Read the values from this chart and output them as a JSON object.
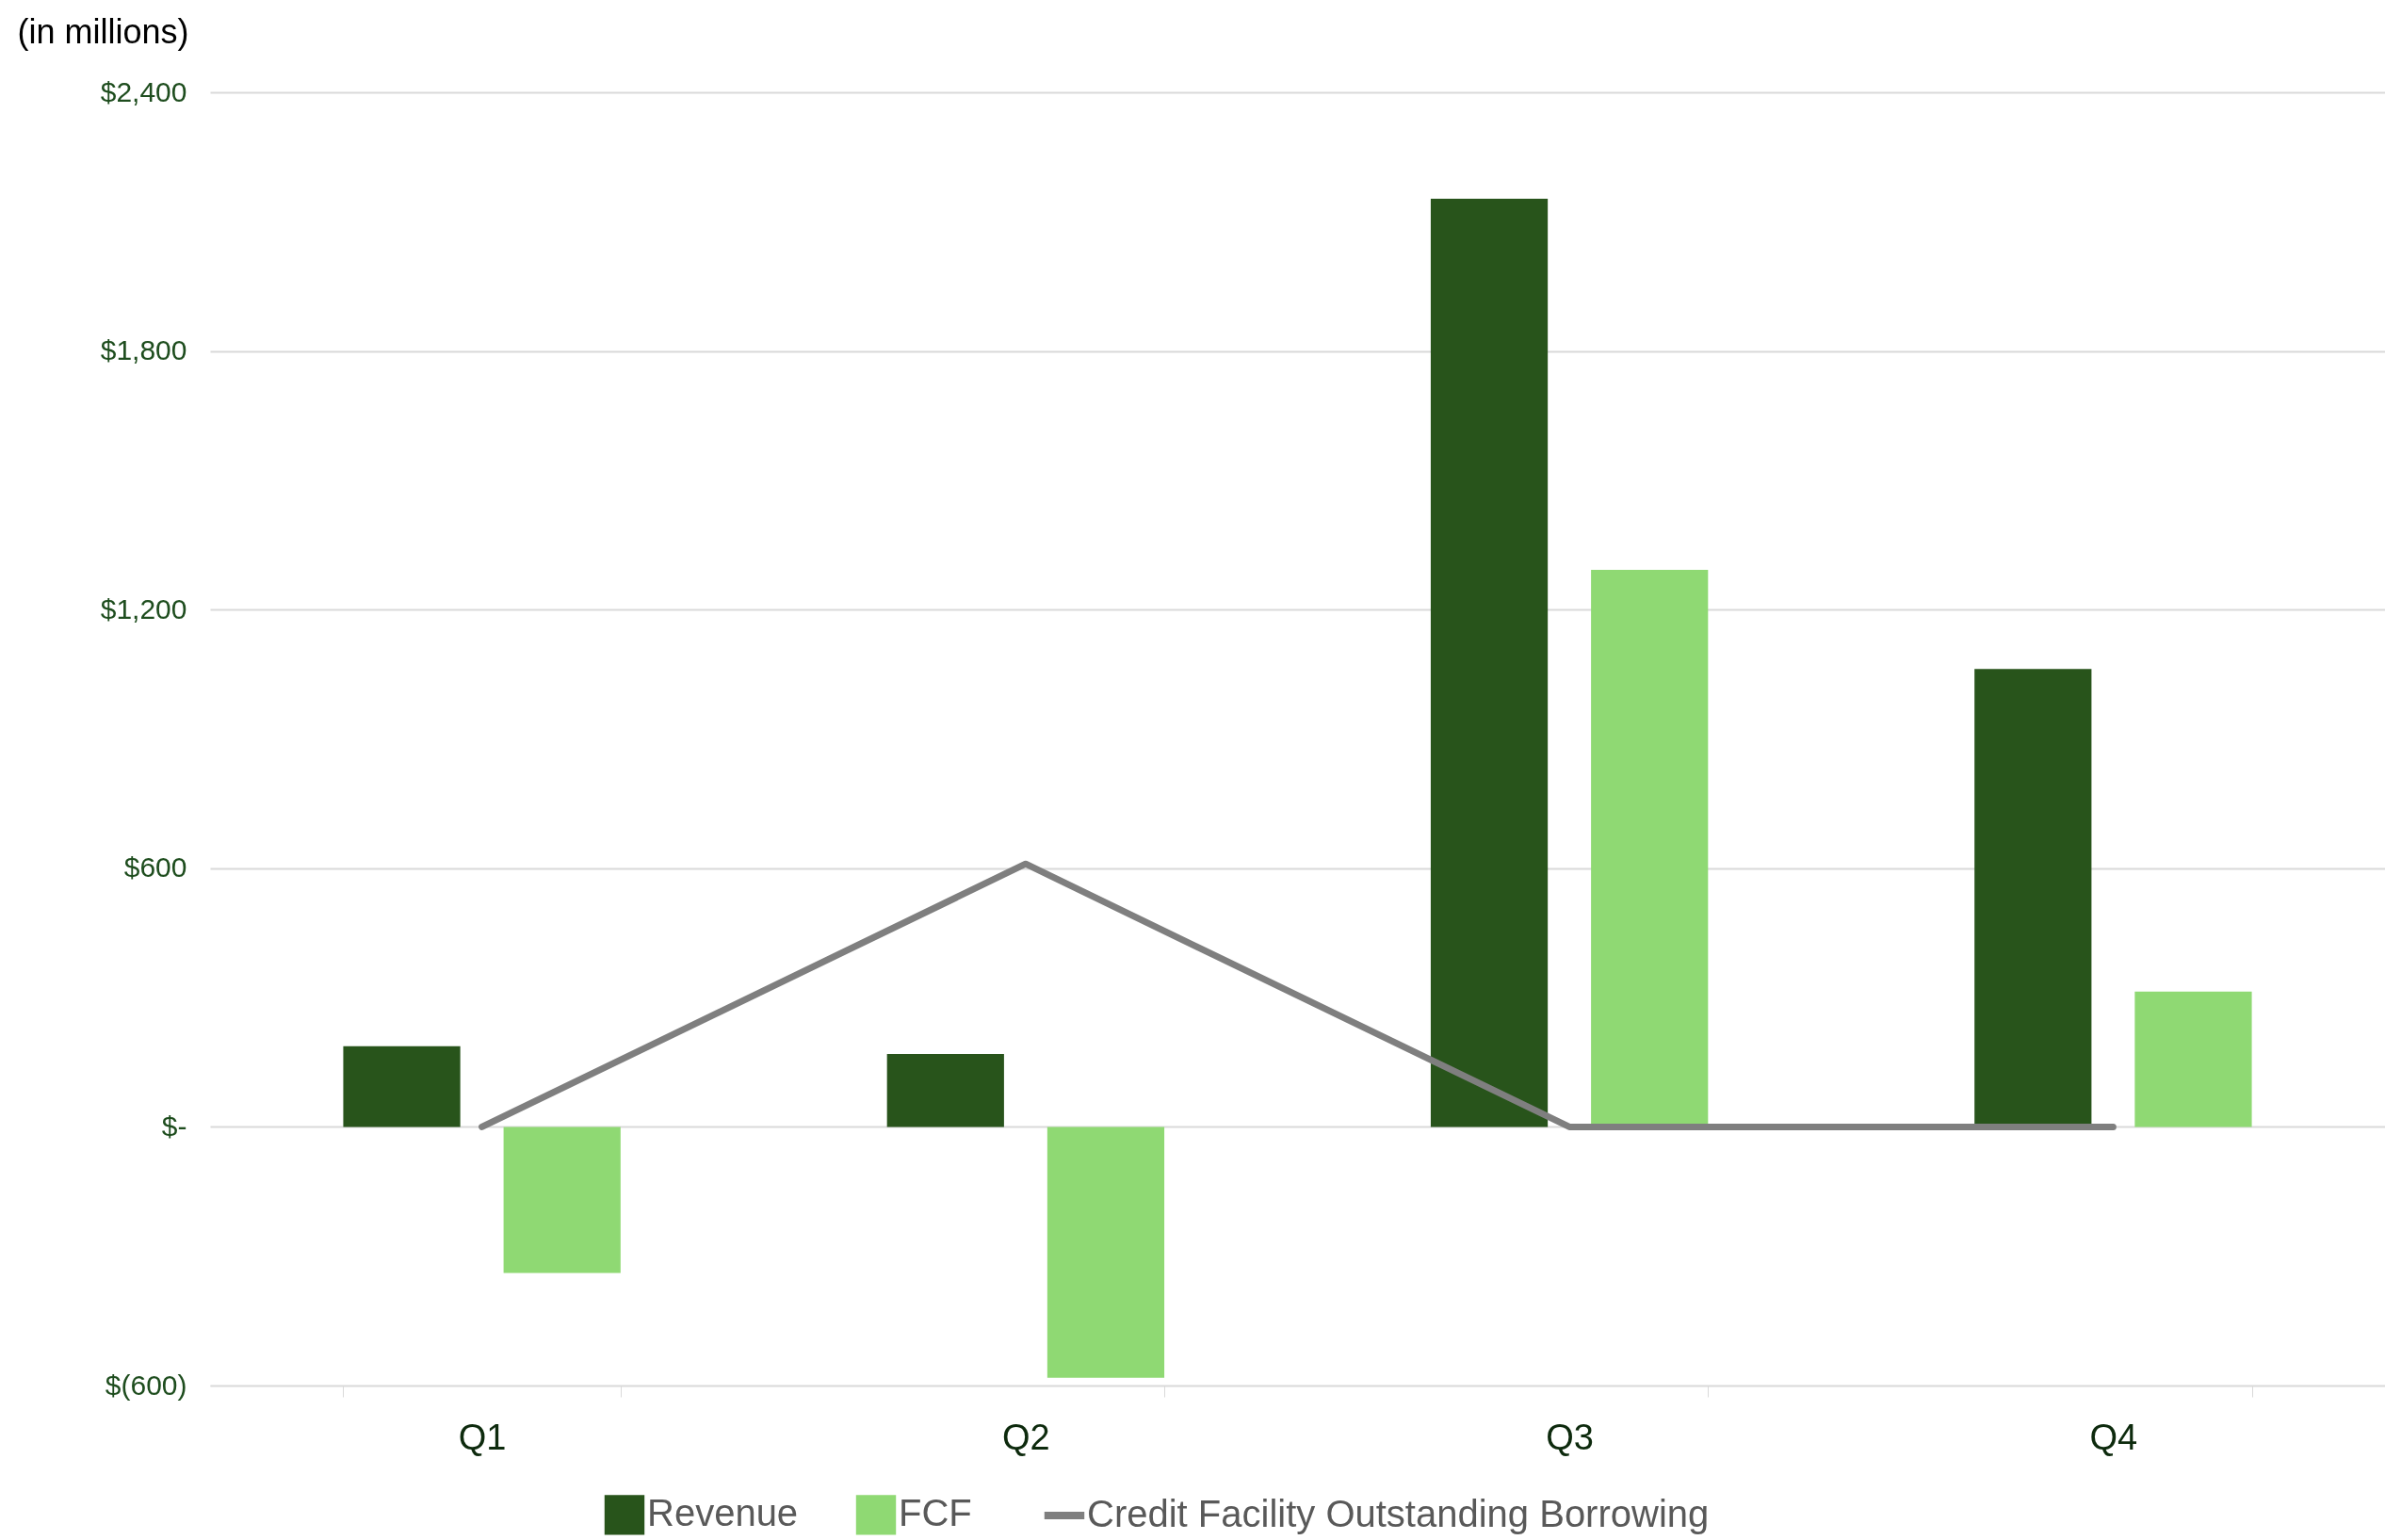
{
  "chart_data": {
    "type": "bar",
    "ylabel": "(in millions)",
    "categories": [
      "Q1",
      "Q2",
      "Q3",
      "Q4"
    ],
    "series": [
      {
        "name": "Revenue",
        "color": "#28541b",
        "values": [
          187,
          169,
          2153,
          1062
        ]
      },
      {
        "name": "FCF",
        "color": "#8fd973",
        "values": [
          -339,
          -582,
          1292,
          314
        ]
      },
      {
        "name": "Credit Facility Outstanding Borrowing",
        "type": "line",
        "color": "#7f7f7f",
        "values": [
          0,
          610,
          0,
          0
        ]
      }
    ],
    "ylim": [
      -600,
      2400
    ],
    "yticks": [
      {
        "value": -600,
        "label": "$(600)"
      },
      {
        "value": 0,
        "label": "$-"
      },
      {
        "value": 600,
        "label": "$600"
      },
      {
        "value": 1200,
        "label": "$1,200"
      },
      {
        "value": 1800,
        "label": "$1,800"
      },
      {
        "value": 2400,
        "label": "$2,400"
      }
    ],
    "grid": "y",
    "legend": "bottom"
  }
}
